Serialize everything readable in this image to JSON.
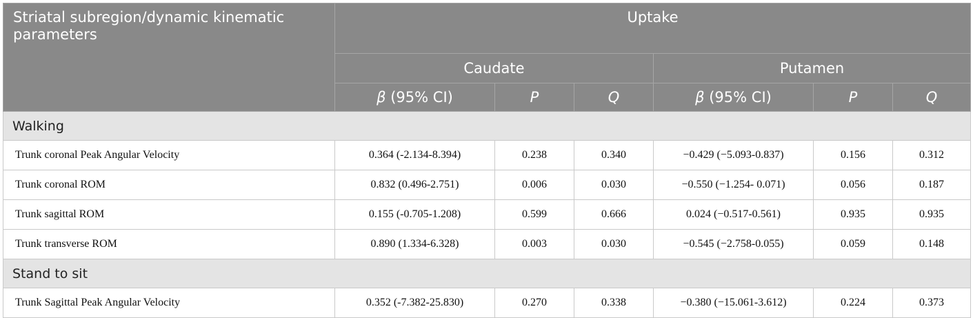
{
  "header": {
    "stub": "Striatal subregion/dynamic kinematic parameters",
    "uptake": "Uptake",
    "caudate": "Caudate",
    "putamen": "Putamen",
    "beta_symbol": "β",
    "beta_ci": " (95% CI)",
    "p": "P",
    "q": "Q"
  },
  "sections": [
    {
      "title": "Walking",
      "rows": [
        {
          "label": "Trunk coronal Peak Angular Velocity",
          "c_beta": "0.364 (-2.134-8.394)",
          "c_p": "0.238",
          "c_q": "0.340",
          "p_beta": "−0.429 (−5.093-0.837)",
          "p_p": "0.156",
          "p_q": "0.312"
        },
        {
          "label": "Trunk coronal ROM",
          "c_beta": "0.832 (0.496-2.751)",
          "c_p": "0.006",
          "c_q": "0.030",
          "p_beta": "−0.550 (−1.254- 0.071)",
          "p_p": "0.056",
          "p_q": "0.187"
        },
        {
          "label": "Trunk sagittal ROM",
          "c_beta": "0.155 (-0.705-1.208)",
          "c_p": "0.599",
          "c_q": "0.666",
          "p_beta": "0.024 (−0.517-0.561)",
          "p_p": "0.935",
          "p_q": "0.935"
        },
        {
          "label": "Trunk transverse ROM",
          "c_beta": "0.890 (1.334-6.328)",
          "c_p": "0.003",
          "c_q": "0.030",
          "p_beta": "−0.545 (−2.758-0.055)",
          "p_p": "0.059",
          "p_q": "0.148"
        }
      ]
    },
    {
      "title": "Stand to sit",
      "rows": [
        {
          "label": "Trunk Sagittal Peak Angular Velocity",
          "c_beta": "0.352 (-7.382-25.830)",
          "c_p": "0.270",
          "c_q": "0.338",
          "p_beta": "−0.380 (−15.061-3.612)",
          "p_p": "0.224",
          "p_q": "0.373"
        }
      ]
    }
  ]
}
